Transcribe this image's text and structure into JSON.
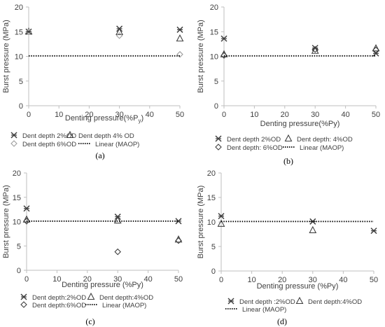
{
  "chart_data": [
    {
      "type": "scatter",
      "panel_label": "(a)",
      "xlabel": "Denting pressure(%P",
      "xlabel_sub": "y",
      "xlabel_close": ")",
      "ylabel": "Burst pressure (MPa)",
      "xlim": [
        0,
        50
      ],
      "ylim": [
        0,
        20
      ],
      "xticks": [
        0,
        10,
        20,
        30,
        40,
        50
      ],
      "yticks": [
        0,
        5,
        10,
        15,
        20
      ],
      "grid": false,
      "legend_position": "bottom",
      "series": [
        {
          "name": "Dent depth 2%OD",
          "marker": "x-star",
          "color": "#404040",
          "x": [
            0,
            30,
            50
          ],
          "y": [
            15.0,
            15.6,
            15.4
          ]
        },
        {
          "name": "Dent depth 4% OD",
          "marker": "triangle",
          "color": "#404040",
          "x": [
            0,
            30,
            50
          ],
          "y": [
            15.0,
            14.9,
            13.6
          ]
        },
        {
          "name": "Dent depth 6%OD",
          "marker": "diamond",
          "color": "#9e9e9e",
          "x": [
            0,
            30,
            50
          ],
          "y": [
            15.0,
            14.2,
            10.4
          ]
        },
        {
          "name": "Linear (MAOP)",
          "marker": "dotted-line",
          "color": "#000000",
          "x": [
            0,
            50
          ],
          "y": [
            10.1,
            10.1
          ]
        }
      ]
    },
    {
      "type": "scatter",
      "panel_label": "(b)",
      "xlabel": "Denting pressure(%Py)",
      "ylabel": "Burst pressure (MPa)",
      "xlim": [
        0,
        50
      ],
      "ylim": [
        0,
        20
      ],
      "xticks": [
        0,
        10,
        20,
        30,
        40,
        50
      ],
      "yticks": [
        0,
        5,
        10,
        15,
        20
      ],
      "grid": false,
      "legend_position": "bottom",
      "series": [
        {
          "name": "Dent depth 2%OD",
          "marker": "x-star",
          "color": "#404040",
          "x": [
            0,
            30,
            50
          ],
          "y": [
            13.6,
            11.7,
            10.6
          ]
        },
        {
          "name": "Dent depth: 4%OD",
          "marker": "triangle",
          "color": "#404040",
          "x": [
            0,
            30,
            50
          ],
          "y": [
            10.4,
            11.1,
            11.6
          ]
        },
        {
          "name": "Dent depth: 6%OD",
          "marker": "diamond",
          "color": "#404040",
          "x": [
            0,
            30,
            50
          ],
          "y": [
            10.2,
            11.4,
            11.3
          ]
        },
        {
          "name": "Linear (MAOP)",
          "marker": "dotted-line",
          "color": "#000000",
          "x": [
            0,
            50
          ],
          "y": [
            10.1,
            10.1
          ]
        }
      ]
    },
    {
      "type": "scatter",
      "panel_label": "(c)",
      "xlabel": "Denting pressure (%Py)",
      "ylabel": "Burst pressure (MPa)",
      "xlim": [
        0,
        50
      ],
      "ylim": [
        0,
        20
      ],
      "xticks": [
        0,
        10,
        20,
        30,
        40,
        50
      ],
      "yticks": [
        0,
        5,
        10,
        15,
        20
      ],
      "grid": false,
      "legend_position": "bottom",
      "series": [
        {
          "name": "Dent depth:2%OD",
          "marker": "x-star",
          "color": "#404040",
          "x": [
            0,
            30,
            50
          ],
          "y": [
            12.7,
            11.0,
            10.1
          ]
        },
        {
          "name": "Dent depth:4%OD",
          "marker": "triangle",
          "color": "#404040",
          "x": [
            0,
            30,
            50
          ],
          "y": [
            10.4,
            10.2,
            6.3
          ]
        },
        {
          "name": "Dent depth:6%OD",
          "marker": "diamond",
          "color": "#404040",
          "x": [
            0,
            30,
            50
          ],
          "y": [
            10.1,
            3.8,
            6.1
          ]
        },
        {
          "name": "Linear (MAOP)",
          "marker": "dotted-line",
          "color": "#000000",
          "x": [
            0,
            50
          ],
          "y": [
            10.1,
            10.1
          ]
        }
      ]
    },
    {
      "type": "scatter",
      "panel_label": "(d)",
      "xlabel": "Denting pressure (%Py)",
      "ylabel": "Burst pressure (MPa)",
      "xlim": [
        0,
        50
      ],
      "ylim": [
        0,
        20
      ],
      "xticks": [
        0,
        10,
        20,
        30,
        40,
        50
      ],
      "yticks": [
        0,
        5,
        10,
        15,
        20
      ],
      "grid": false,
      "legend_position": "bottom",
      "series": [
        {
          "name": "Dent depth :2%OD",
          "marker": "x-star",
          "color": "#404040",
          "x": [
            0,
            30,
            50
          ],
          "y": [
            11.2,
            10.1,
            8.2
          ]
        },
        {
          "name": "Dent depth:4%OD",
          "marker": "triangle",
          "color": "#404040",
          "x": [
            0,
            30
          ],
          "y": [
            9.6,
            8.3
          ]
        },
        {
          "name": "Linear (MAOP)",
          "marker": "dotted-line",
          "color": "#000000",
          "x": [
            0,
            50
          ],
          "y": [
            10.1,
            10.1
          ]
        }
      ]
    }
  ]
}
